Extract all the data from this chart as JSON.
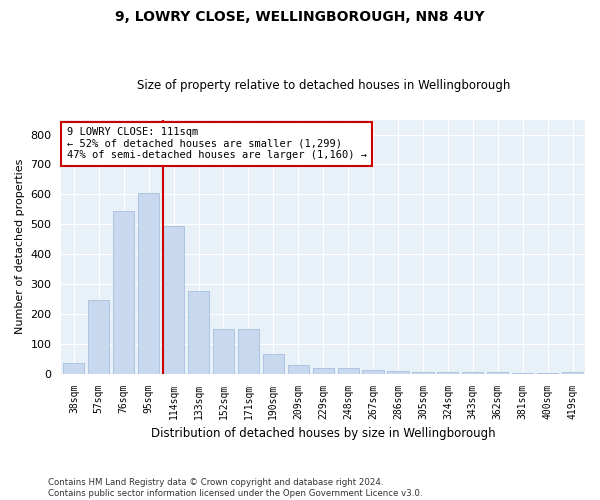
{
  "title1": "9, LOWRY CLOSE, WELLINGBOROUGH, NN8 4UY",
  "title2": "Size of property relative to detached houses in Wellingborough",
  "xlabel": "Distribution of detached houses by size in Wellingborough",
  "ylabel": "Number of detached properties",
  "categories": [
    "38sqm",
    "57sqm",
    "76sqm",
    "95sqm",
    "114sqm",
    "133sqm",
    "152sqm",
    "171sqm",
    "190sqm",
    "209sqm",
    "229sqm",
    "248sqm",
    "267sqm",
    "286sqm",
    "305sqm",
    "324sqm",
    "343sqm",
    "362sqm",
    "381sqm",
    "400sqm",
    "419sqm"
  ],
  "values": [
    35,
    245,
    545,
    605,
    495,
    275,
    148,
    148,
    65,
    30,
    20,
    18,
    14,
    8,
    6,
    6,
    5,
    5,
    3,
    3,
    7
  ],
  "bar_color": "#c8d8ee",
  "bar_edge_color": "#a8bedd",
  "vline_color": "#cc0000",
  "annotation_text": "9 LOWRY CLOSE: 111sqm\n← 52% of detached houses are smaller (1,299)\n47% of semi-detached houses are larger (1,160) →",
  "annotation_box_color": "#ffffff",
  "annotation_box_edge": "#cc0000",
  "footer": "Contains HM Land Registry data © Crown copyright and database right 2024.\nContains public sector information licensed under the Open Government Licence v3.0.",
  "ylim": [
    0,
    850
  ],
  "yticks": [
    0,
    100,
    200,
    300,
    400,
    500,
    600,
    700,
    800
  ],
  "plot_bg_color": "#e8f0f8",
  "fig_bg_color": "#ffffff",
  "grid_color": "#ffffff"
}
